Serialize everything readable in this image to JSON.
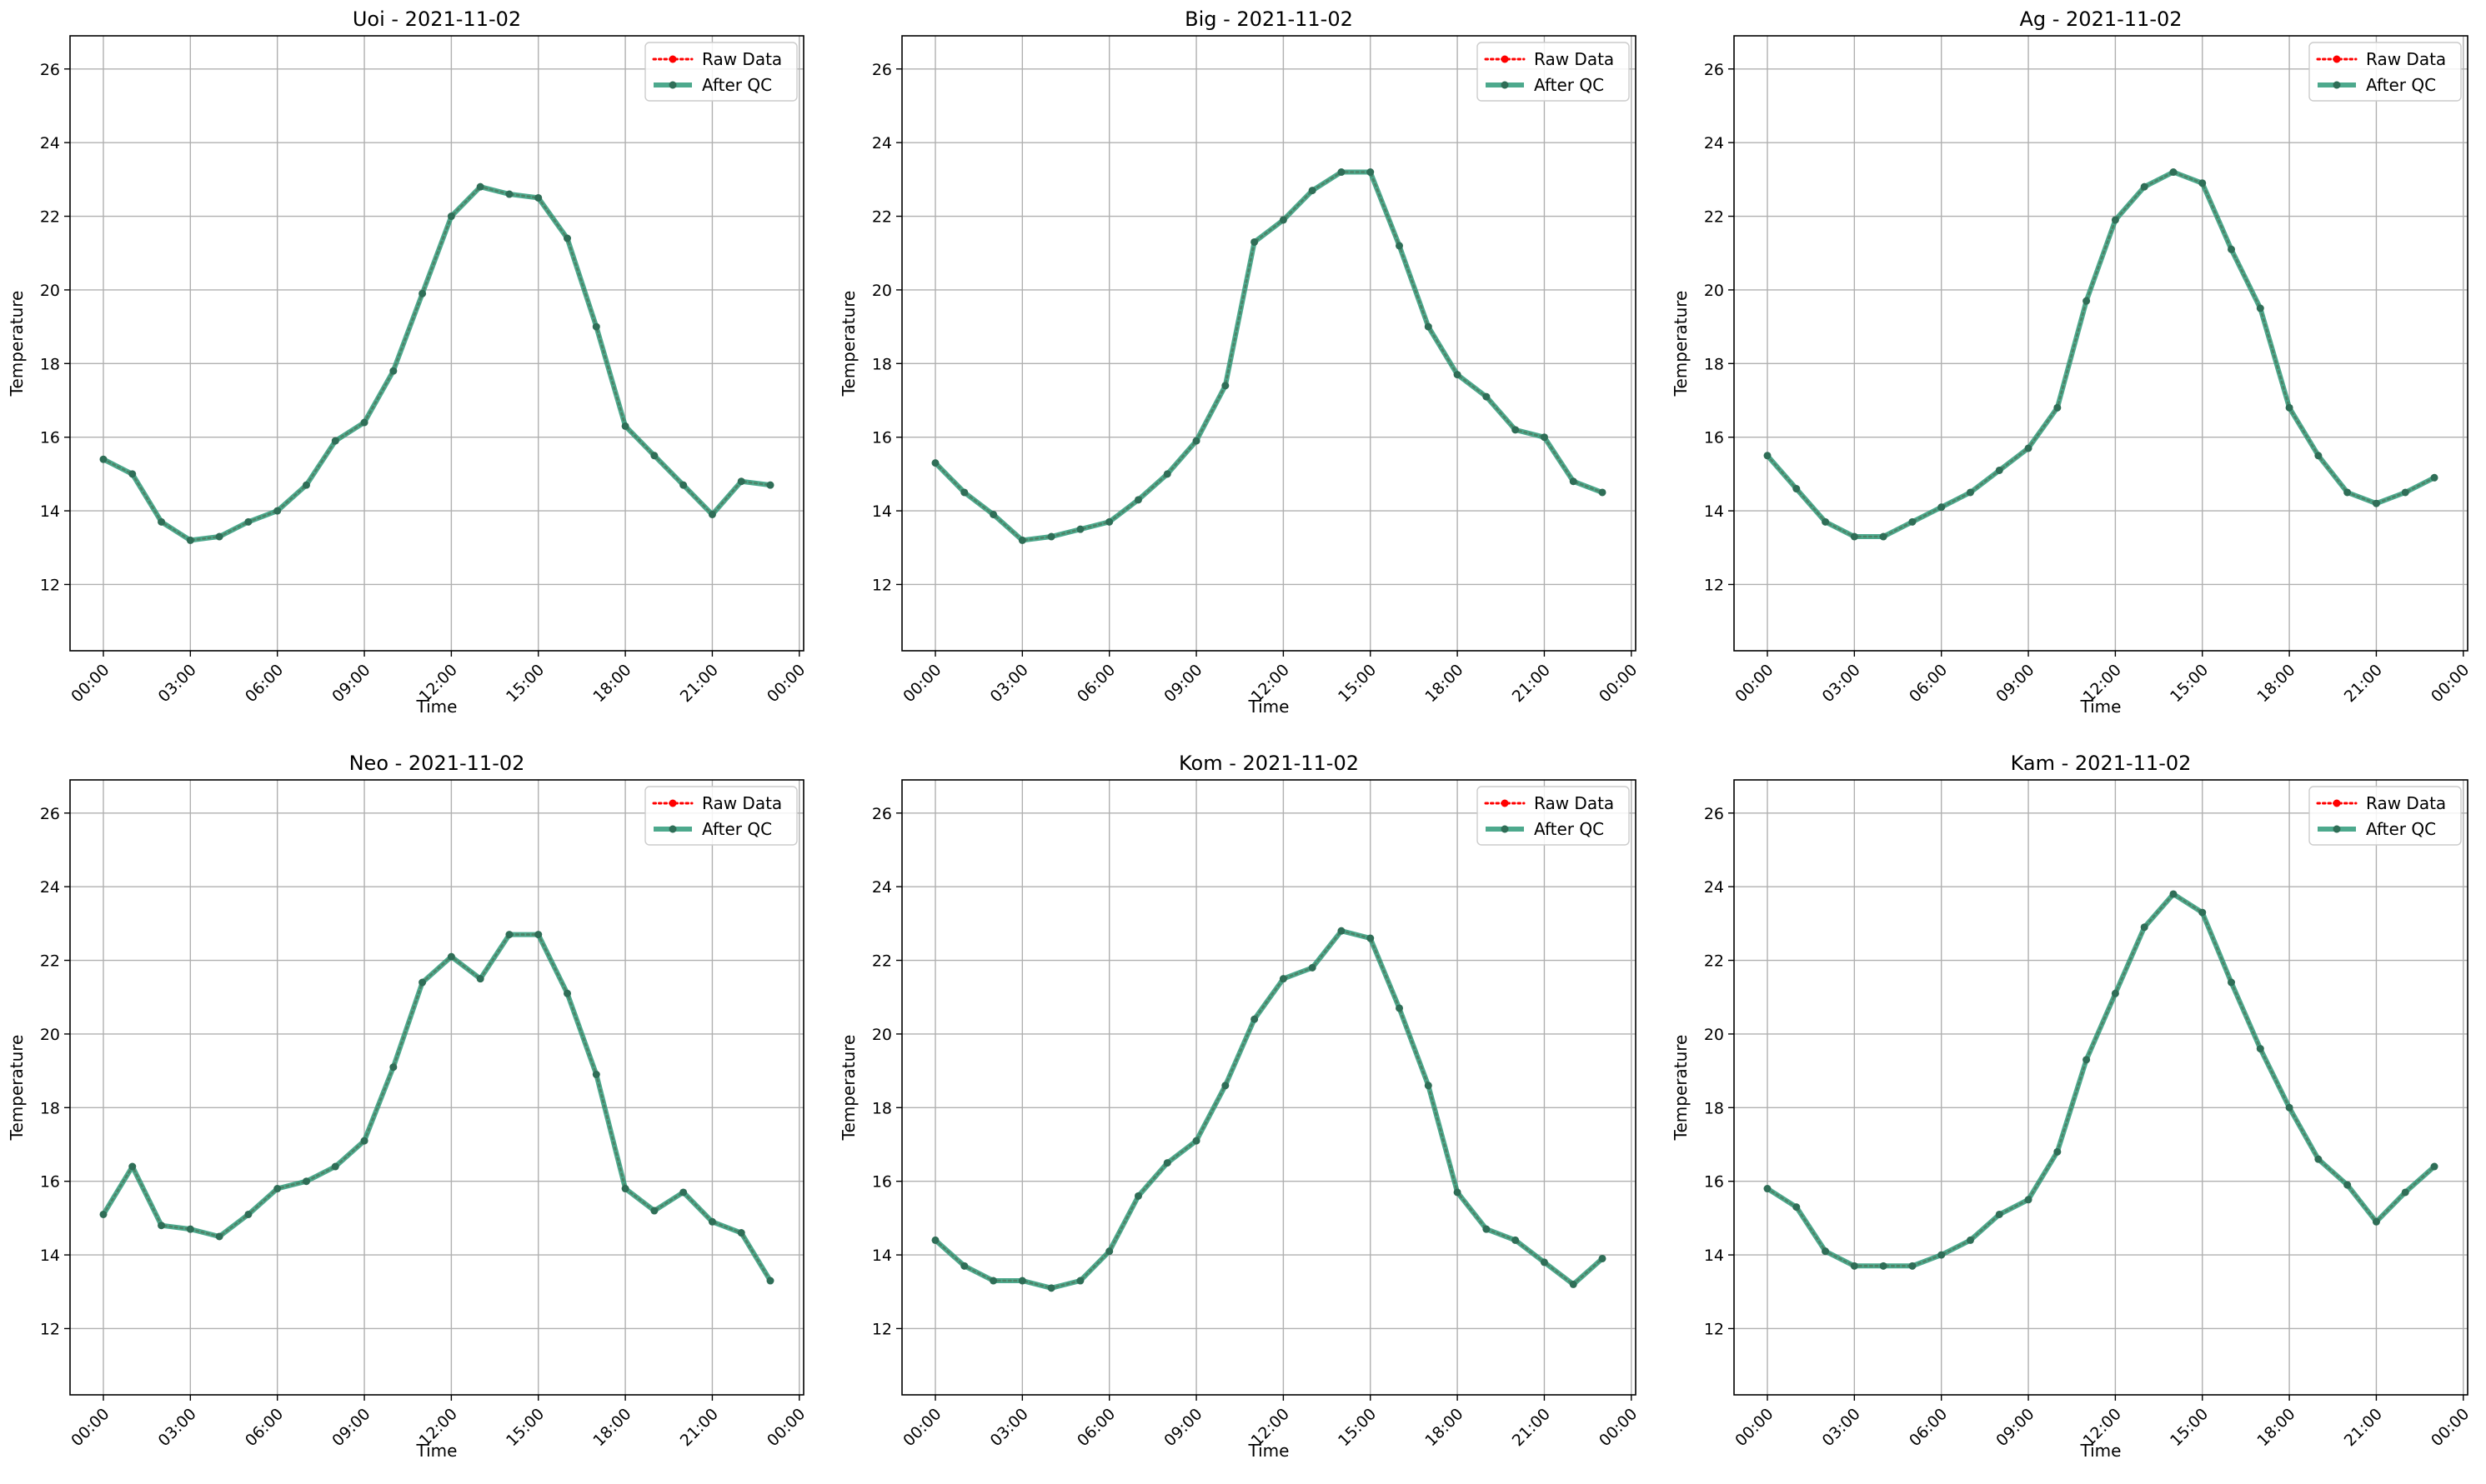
{
  "colors": {
    "raw": "#ff0000",
    "qc": "#2e9a79",
    "qc_marker": "#2f6e57",
    "grid": "#b0b0b0"
  },
  "chart_data": [
    {
      "type": "line",
      "title": "Uoi - 2021-11-02",
      "xlabel": "Time",
      "ylabel": "Temperature",
      "x": [
        "00:00",
        "01:00",
        "02:00",
        "03:00",
        "04:00",
        "05:00",
        "06:00",
        "07:00",
        "08:00",
        "09:00",
        "10:00",
        "11:00",
        "12:00",
        "13:00",
        "14:00",
        "15:00",
        "16:00",
        "17:00",
        "18:00",
        "19:00",
        "20:00",
        "21:00",
        "22:00",
        "23:00"
      ],
      "x_ticks": [
        "00:00",
        "03:00",
        "06:00",
        "09:00",
        "12:00",
        "15:00",
        "18:00",
        "21:00",
        "00:00"
      ],
      "xlim_hours": [
        -1.15,
        24.15
      ],
      "ylim": [
        10.2,
        26.9
      ],
      "y_ticks": [
        12,
        14,
        16,
        18,
        20,
        22,
        24,
        26
      ],
      "grid": true,
      "legend_position": "top-right",
      "series": [
        {
          "name": "Raw Data",
          "style": "dotted",
          "values": [
            15.4,
            15.0,
            13.7,
            13.2,
            13.3,
            13.7,
            14.0,
            14.7,
            15.9,
            16.4,
            17.8,
            19.9,
            22.0,
            22.8,
            22.6,
            22.5,
            21.4,
            19.0,
            16.3,
            15.5,
            14.7,
            13.9,
            14.8,
            14.7
          ]
        },
        {
          "name": "After QC",
          "style": "solid",
          "values": [
            15.4,
            15.0,
            13.7,
            13.2,
            13.3,
            13.7,
            14.0,
            14.7,
            15.9,
            16.4,
            17.8,
            19.9,
            22.0,
            22.8,
            22.6,
            22.5,
            21.4,
            19.0,
            16.3,
            15.5,
            14.7,
            13.9,
            14.8,
            14.7
          ]
        }
      ]
    },
    {
      "type": "line",
      "title": "Big - 2021-11-02",
      "xlabel": "Time",
      "ylabel": "Temperature",
      "x": [
        "00:00",
        "01:00",
        "02:00",
        "03:00",
        "04:00",
        "05:00",
        "06:00",
        "07:00",
        "08:00",
        "09:00",
        "10:00",
        "11:00",
        "12:00",
        "13:00",
        "14:00",
        "15:00",
        "16:00",
        "17:00",
        "18:00",
        "19:00",
        "20:00",
        "21:00",
        "22:00",
        "23:00"
      ],
      "x_ticks": [
        "00:00",
        "03:00",
        "06:00",
        "09:00",
        "12:00",
        "15:00",
        "18:00",
        "21:00",
        "00:00"
      ],
      "xlim_hours": [
        -1.15,
        24.15
      ],
      "ylim": [
        10.2,
        26.9
      ],
      "y_ticks": [
        12,
        14,
        16,
        18,
        20,
        22,
        24,
        26
      ],
      "grid": true,
      "legend_position": "top-right",
      "series": [
        {
          "name": "Raw Data",
          "style": "dotted",
          "values": [
            15.3,
            14.5,
            13.9,
            13.2,
            13.3,
            13.5,
            13.7,
            14.3,
            15.0,
            15.9,
            17.4,
            21.3,
            21.9,
            22.7,
            23.2,
            23.2,
            21.2,
            19.0,
            17.7,
            17.1,
            16.2,
            16.0,
            14.8,
            14.5
          ]
        },
        {
          "name": "After QC",
          "style": "solid",
          "values": [
            15.3,
            14.5,
            13.9,
            13.2,
            13.3,
            13.5,
            13.7,
            14.3,
            15.0,
            15.9,
            17.4,
            21.3,
            21.9,
            22.7,
            23.2,
            23.2,
            21.2,
            19.0,
            17.7,
            17.1,
            16.2,
            16.0,
            14.8,
            14.5
          ]
        }
      ]
    },
    {
      "type": "line",
      "title": "Ag - 2021-11-02",
      "xlabel": "Time",
      "ylabel": "Temperature",
      "x": [
        "00:00",
        "01:00",
        "02:00",
        "03:00",
        "04:00",
        "05:00",
        "06:00",
        "07:00",
        "08:00",
        "09:00",
        "10:00",
        "11:00",
        "12:00",
        "13:00",
        "14:00",
        "15:00",
        "16:00",
        "17:00",
        "18:00",
        "19:00",
        "20:00",
        "21:00",
        "22:00",
        "23:00"
      ],
      "x_ticks": [
        "00:00",
        "03:00",
        "06:00",
        "09:00",
        "12:00",
        "15:00",
        "18:00",
        "21:00",
        "00:00"
      ],
      "xlim_hours": [
        -1.15,
        24.15
      ],
      "ylim": [
        10.2,
        26.9
      ],
      "y_ticks": [
        12,
        14,
        16,
        18,
        20,
        22,
        24,
        26
      ],
      "grid": true,
      "legend_position": "top-right",
      "series": [
        {
          "name": "Raw Data",
          "style": "dotted",
          "values": [
            15.5,
            14.6,
            13.7,
            13.3,
            13.3,
            13.7,
            14.1,
            14.5,
            15.1,
            15.7,
            16.8,
            19.7,
            21.9,
            22.8,
            23.2,
            22.9,
            21.1,
            19.5,
            16.8,
            15.5,
            14.5,
            14.2,
            14.5,
            14.9
          ]
        },
        {
          "name": "After QC",
          "style": "solid",
          "values": [
            15.5,
            14.6,
            13.7,
            13.3,
            13.3,
            13.7,
            14.1,
            14.5,
            15.1,
            15.7,
            16.8,
            19.7,
            21.9,
            22.8,
            23.2,
            22.9,
            21.1,
            19.5,
            16.8,
            15.5,
            14.5,
            14.2,
            14.5,
            14.9
          ]
        }
      ]
    },
    {
      "type": "line",
      "title": "Neo - 2021-11-02",
      "xlabel": "Time",
      "ylabel": "Temperature",
      "x": [
        "00:00",
        "01:00",
        "02:00",
        "03:00",
        "04:00",
        "05:00",
        "06:00",
        "07:00",
        "08:00",
        "09:00",
        "10:00",
        "11:00",
        "12:00",
        "13:00",
        "14:00",
        "15:00",
        "16:00",
        "17:00",
        "18:00",
        "19:00",
        "20:00",
        "21:00",
        "22:00",
        "23:00"
      ],
      "x_ticks": [
        "00:00",
        "03:00",
        "06:00",
        "09:00",
        "12:00",
        "15:00",
        "18:00",
        "21:00",
        "00:00"
      ],
      "xlim_hours": [
        -1.15,
        24.15
      ],
      "ylim": [
        10.2,
        26.9
      ],
      "y_ticks": [
        12,
        14,
        16,
        18,
        20,
        22,
        24,
        26
      ],
      "grid": true,
      "legend_position": "top-right",
      "series": [
        {
          "name": "Raw Data",
          "style": "dotted",
          "values": [
            15.1,
            16.4,
            14.8,
            14.7,
            14.5,
            15.1,
            15.8,
            16.0,
            16.4,
            17.1,
            19.1,
            21.4,
            22.1,
            21.5,
            22.7,
            22.7,
            21.1,
            18.9,
            15.8,
            15.2,
            15.7,
            14.9,
            14.6,
            13.3
          ]
        },
        {
          "name": "After QC",
          "style": "solid",
          "values": [
            15.1,
            16.4,
            14.8,
            14.7,
            14.5,
            15.1,
            15.8,
            16.0,
            16.4,
            17.1,
            19.1,
            21.4,
            22.1,
            21.5,
            22.7,
            22.7,
            21.1,
            18.9,
            15.8,
            15.2,
            15.7,
            14.9,
            14.6,
            13.3
          ]
        }
      ]
    },
    {
      "type": "line",
      "title": "Kom - 2021-11-02",
      "xlabel": "Time",
      "ylabel": "Temperature",
      "x": [
        "00:00",
        "01:00",
        "02:00",
        "03:00",
        "04:00",
        "05:00",
        "06:00",
        "07:00",
        "08:00",
        "09:00",
        "10:00",
        "11:00",
        "12:00",
        "13:00",
        "14:00",
        "15:00",
        "16:00",
        "17:00",
        "18:00",
        "19:00",
        "20:00",
        "21:00",
        "22:00",
        "23:00"
      ],
      "x_ticks": [
        "00:00",
        "03:00",
        "06:00",
        "09:00",
        "12:00",
        "15:00",
        "18:00",
        "21:00",
        "00:00"
      ],
      "xlim_hours": [
        -1.15,
        24.15
      ],
      "ylim": [
        10.2,
        26.9
      ],
      "y_ticks": [
        12,
        14,
        16,
        18,
        20,
        22,
        24,
        26
      ],
      "grid": true,
      "legend_position": "top-right",
      "series": [
        {
          "name": "Raw Data",
          "style": "dotted",
          "values": [
            14.4,
            13.7,
            13.3,
            13.3,
            13.1,
            13.3,
            14.1,
            15.6,
            16.5,
            17.1,
            18.6,
            20.4,
            21.5,
            21.8,
            22.8,
            22.6,
            20.7,
            18.6,
            15.7,
            14.7,
            14.4,
            13.8,
            13.2,
            13.9
          ]
        },
        {
          "name": "After QC",
          "style": "solid",
          "values": [
            14.4,
            13.7,
            13.3,
            13.3,
            13.1,
            13.3,
            14.1,
            15.6,
            16.5,
            17.1,
            18.6,
            20.4,
            21.5,
            21.8,
            22.8,
            22.6,
            20.7,
            18.6,
            15.7,
            14.7,
            14.4,
            13.8,
            13.2,
            13.9
          ]
        }
      ]
    },
    {
      "type": "line",
      "title": "Kam - 2021-11-02",
      "xlabel": "Time",
      "ylabel": "Temperature",
      "x": [
        "00:00",
        "01:00",
        "02:00",
        "03:00",
        "04:00",
        "05:00",
        "06:00",
        "07:00",
        "08:00",
        "09:00",
        "10:00",
        "11:00",
        "12:00",
        "13:00",
        "14:00",
        "15:00",
        "16:00",
        "17:00",
        "18:00",
        "19:00",
        "20:00",
        "21:00",
        "22:00",
        "23:00"
      ],
      "x_ticks": [
        "00:00",
        "03:00",
        "06:00",
        "09:00",
        "12:00",
        "15:00",
        "18:00",
        "21:00",
        "00:00"
      ],
      "xlim_hours": [
        -1.15,
        24.15
      ],
      "ylim": [
        10.2,
        26.9
      ],
      "y_ticks": [
        12,
        14,
        16,
        18,
        20,
        22,
        24,
        26
      ],
      "grid": true,
      "legend_position": "top-right",
      "series": [
        {
          "name": "Raw Data",
          "style": "dotted",
          "values": [
            15.8,
            15.3,
            14.1,
            13.7,
            13.7,
            13.7,
            14.0,
            14.4,
            15.1,
            15.5,
            16.8,
            19.3,
            21.1,
            22.9,
            23.8,
            23.3,
            21.4,
            19.6,
            18.0,
            16.6,
            15.9,
            14.9,
            15.7,
            16.4
          ]
        },
        {
          "name": "After QC",
          "style": "solid",
          "values": [
            15.8,
            15.3,
            14.1,
            13.7,
            13.7,
            13.7,
            14.0,
            14.4,
            15.1,
            15.5,
            16.8,
            19.3,
            21.1,
            22.9,
            23.8,
            23.3,
            21.4,
            19.6,
            18.0,
            16.6,
            15.9,
            14.9,
            15.7,
            16.4
          ]
        }
      ]
    }
  ]
}
